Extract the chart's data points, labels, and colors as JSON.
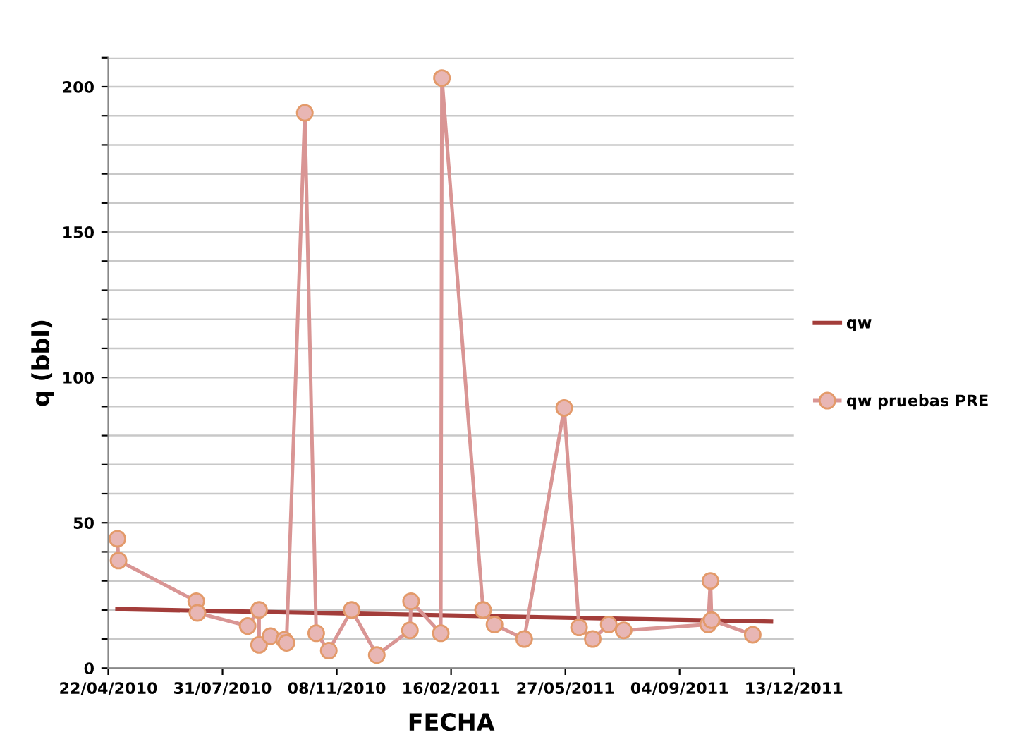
{
  "chart_data": {
    "type": "line",
    "xlabel": "FECHA",
    "ylabel": "q (bbl)",
    "xlim": [
      "2010-04-22",
      "2011-12-13"
    ],
    "xticks": [
      {
        "value": "2010-04-22",
        "label": "22/04/2010"
      },
      {
        "value": "2010-07-31",
        "label": "31/07/2010"
      },
      {
        "value": "2010-11-08",
        "label": "08/11/2010"
      },
      {
        "value": "2011-02-16",
        "label": "16/02/2011"
      },
      {
        "value": "2011-05-27",
        "label": "27/05/2011"
      },
      {
        "value": "2011-09-04",
        "label": "04/09/2011"
      },
      {
        "value": "2011-12-13",
        "label": "13/12/2011"
      }
    ],
    "ylim": [
      0,
      210
    ],
    "yticks": [
      0,
      {
        "value": 10,
        "label": null
      },
      {
        "value": 20,
        "label": null
      },
      {
        "value": 30,
        "label": null
      },
      {
        "value": 40,
        "label": null
      },
      50,
      {
        "value": 60,
        "label": null
      },
      {
        "value": 70,
        "label": null
      },
      {
        "value": 80,
        "label": null
      },
      {
        "value": 90,
        "label": null
      },
      100,
      {
        "value": 110,
        "label": null
      },
      {
        "value": 120,
        "label": null
      },
      {
        "value": 130,
        "label": null
      },
      {
        "value": 140,
        "label": null
      },
      150,
      {
        "value": 160,
        "label": null
      },
      {
        "value": 170,
        "label": null
      },
      {
        "value": 180,
        "label": null
      },
      {
        "value": 190,
        "label": null
      },
      200,
      {
        "value": 210,
        "label": null
      }
    ],
    "grid": "y",
    "legend": "right",
    "series": [
      {
        "name": "qw",
        "color": "#a33d3a",
        "marker": "none",
        "x": [
          "2010-04-30",
          "2011-11-23"
        ],
        "values": [
          20.3,
          16
        ]
      },
      {
        "name": "qw pruebas PRE",
        "color": "#d99594",
        "marker": "circle",
        "x": [
          "2010-04-30",
          "2010-05-01",
          "2010-07-08",
          "2010-07-09",
          "2010-08-22",
          "2010-09-01",
          "2010-09-01",
          "2010-09-11",
          "2010-09-23",
          "2010-09-25",
          "2010-10-11",
          "2010-10-21",
          "2010-11-01",
          "2010-11-21",
          "2010-12-13",
          "2011-01-11",
          "2011-01-12",
          "2011-02-07",
          "2011-02-08",
          "2011-03-16",
          "2011-03-26",
          "2011-04-21",
          "2011-05-26",
          "2011-06-08",
          "2011-06-20",
          "2011-07-04",
          "2011-07-17",
          "2011-09-29",
          "2011-10-01",
          "2011-10-02",
          "2011-11-07"
        ],
        "values": [
          44.5,
          37,
          23,
          19,
          14.5,
          20,
          8,
          11,
          9.7,
          8.7,
          191,
          12,
          6,
          20,
          4.5,
          13,
          23,
          12,
          203,
          20,
          15,
          10,
          89.5,
          14,
          10,
          15,
          13,
          15,
          30,
          16.5,
          11.5
        ]
      }
    ]
  }
}
